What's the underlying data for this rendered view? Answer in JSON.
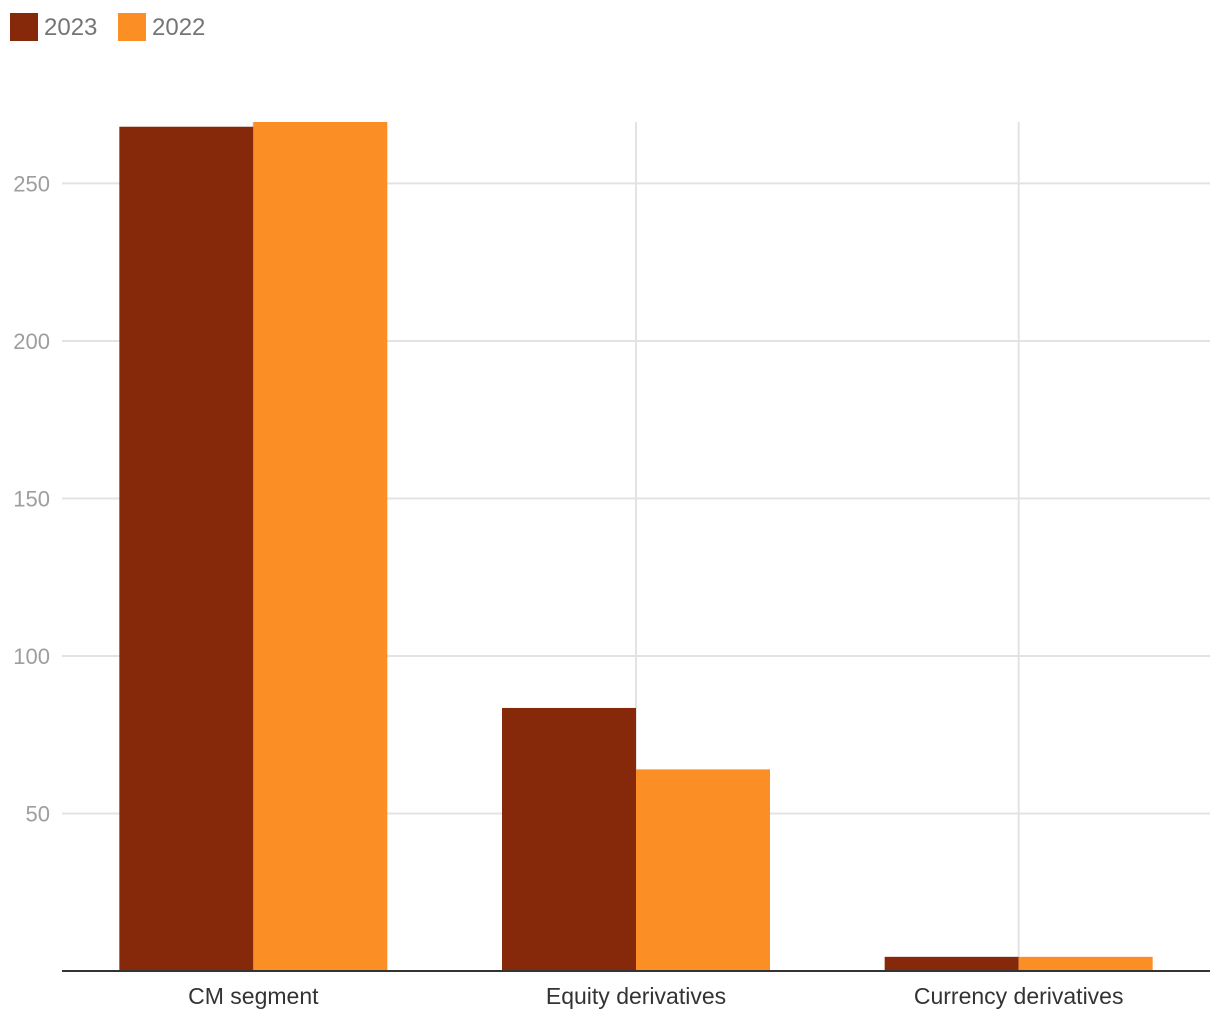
{
  "chart_data": {
    "type": "bar",
    "categories": [
      "CM segment",
      "Equity derivatives",
      "Currency derivatives"
    ],
    "series": [
      {
        "name": "2023",
        "values": [
          268,
          83.5,
          4.5
        ],
        "color": "#85290a"
      },
      {
        "name": "2022",
        "values": [
          269.5,
          64,
          4.5
        ],
        "color": "#fb8f25"
      }
    ],
    "yticks": [
      50,
      100,
      150,
      200,
      250
    ],
    "ylim": [
      0,
      269.5
    ],
    "grid": true,
    "legend_position": "top-left",
    "title": "",
    "xlabel": "",
    "ylabel": ""
  }
}
